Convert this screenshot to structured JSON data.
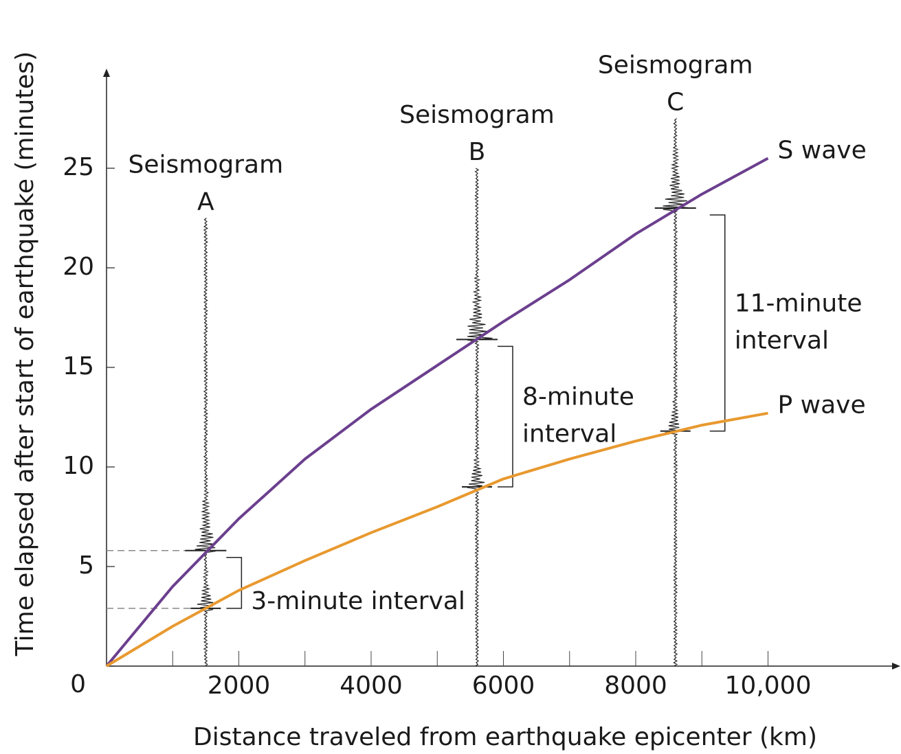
{
  "chart_data": {
    "type": "line",
    "xlabel": "Distance traveled from earthquake epicenter (km)",
    "ylabel": "Time elapsed after start of earthquake (minutes)",
    "x": [
      0,
      1000,
      2000,
      3000,
      4000,
      5000,
      6000,
      7000,
      8000,
      9000,
      10000
    ],
    "series": [
      {
        "name": "S wave",
        "color": "#6b3f8e",
        "values": [
          0,
          4.0,
          7.4,
          10.4,
          12.9,
          15.1,
          17.3,
          19.4,
          21.7,
          23.7,
          25.5
        ]
      },
      {
        "name": "P wave",
        "color": "#e8992f",
        "values": [
          0,
          2.0,
          3.8,
          5.3,
          6.7,
          8.0,
          9.4,
          10.4,
          11.3,
          12.1,
          12.7
        ]
      }
    ],
    "xlim": [
      0,
      12000
    ],
    "ylim": [
      0,
      30
    ],
    "xticks": [
      2000,
      4000,
      6000,
      8000,
      {
        "value": 10000,
        "label": "10,000"
      }
    ],
    "xminorticks": [
      1000,
      3000,
      5000,
      7000,
      9000
    ],
    "yticks": [
      0,
      5,
      10,
      15,
      20,
      25
    ],
    "seismograms": [
      {
        "label": "Seismogram",
        "letter": "A",
        "x": 1500,
        "top": 22.5,
        "p_time": 2.9,
        "s_time": 5.8,
        "interval": [
          "3-minute interval"
        ],
        "guides": true
      },
      {
        "label": "Seismogram",
        "letter": "B",
        "x": 5600,
        "top": 25,
        "p_time": 9.0,
        "s_time": 16.4,
        "interval": [
          "8-minute",
          "interval"
        ],
        "guides": false
      },
      {
        "label": "Seismogram",
        "letter": "C",
        "x": 8600,
        "top": 27.5,
        "p_time": 11.8,
        "s_time": 23.0,
        "interval": [
          "11-minute",
          "interval"
        ],
        "guides": false
      }
    ]
  }
}
